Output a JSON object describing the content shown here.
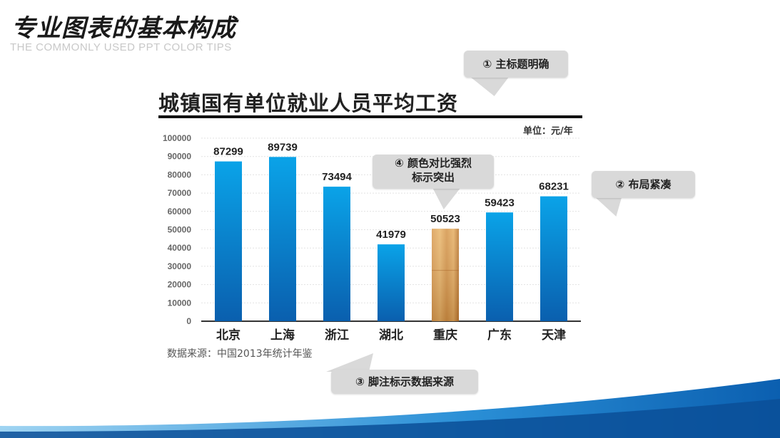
{
  "header": {
    "title": "专业图表的基本构成",
    "subtitle": "THE COMMONLY USED PPT COLOR TIPS"
  },
  "chart": {
    "title": "城镇国有单位就业人员平均工资",
    "unit": "单位：元/年",
    "source": "数据来源：中国2013年统计年鉴"
  },
  "callouts": {
    "title_clear": "① 主标题明确",
    "compact_layout": "② 布局紧凑",
    "footnote_source": "③ 脚注标示数据来源",
    "contrast_line1": "④ 颜色对比强烈",
    "contrast_line2": "标示突出"
  },
  "colors": {
    "bar_top": "#0aa3e8",
    "bar_bottom": "#0a5fae",
    "highlight_top": "#e8b56a",
    "highlight_bottom": "#b8742c",
    "callout_bg": "#d9d9d9",
    "wave_blue": "#0b63b6"
  },
  "chart_data": {
    "type": "bar",
    "title": "城镇国有单位就业人员平均工资",
    "xlabel": "",
    "ylabel": "",
    "categories": [
      "北京",
      "上海",
      "浙江",
      "湖北",
      "重庆",
      "广东",
      "天津"
    ],
    "values": [
      87299,
      89739,
      73494,
      41979,
      50523,
      59423,
      68231
    ],
    "highlight_index": 4,
    "ylim": [
      0,
      100000
    ],
    "yticks": [
      "0",
      "10000",
      "20000",
      "30000",
      "40000",
      "50000",
      "60000",
      "70000",
      "80000",
      "90000",
      "100000"
    ],
    "grid": true,
    "legend": "none"
  }
}
